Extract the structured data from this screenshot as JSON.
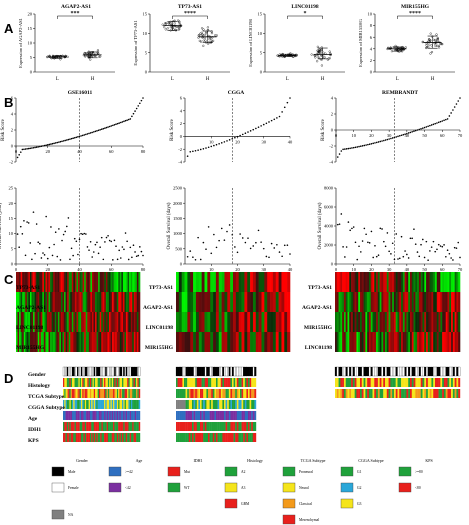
{
  "panel_letters": [
    "A",
    "B",
    "C",
    "D"
  ],
  "panelA": [
    {
      "title": "AGAP2-AS1",
      "ylabel": "Expression of AGAP2-AS1",
      "groups": [
        "L",
        "H"
      ],
      "sig": "***",
      "yticks": [
        "0",
        "5",
        "10",
        "15",
        "20"
      ],
      "ymin": 0,
      "ymax": 20,
      "L": {
        "mean": 5.2,
        "lo": 4.7,
        "hi": 5.6,
        "n": 40
      },
      "H": {
        "mean": 5.9,
        "lo": 4.9,
        "hi": 6.9,
        "n": 40
      }
    },
    {
      "title": "TP73-AS1",
      "ylabel": "Expression of TP73-AS1",
      "groups": [
        "L",
        "H"
      ],
      "sig": "****",
      "yticks": [
        "0",
        "5",
        "10",
        "15"
      ],
      "ymin": 0,
      "ymax": 15,
      "L": {
        "mean": 12,
        "lo": 10.7,
        "hi": 13.1,
        "n": 40
      },
      "H": {
        "mean": 9.1,
        "lo": 7.6,
        "hi": 10.6,
        "n": 40
      }
    },
    {
      "title": "LINC01198",
      "ylabel": "Expression of LINC01198",
      "groups": [
        "L",
        "H"
      ],
      "sig": "*",
      "yticks": [
        "0",
        "5",
        "10",
        "15"
      ],
      "ymin": 0,
      "ymax": 15,
      "L": {
        "mean": 4.3,
        "lo": 4.0,
        "hi": 4.6,
        "n": 40
      },
      "H": {
        "mean": 4.5,
        "lo": 3.4,
        "hi": 6.2,
        "n": 40
      }
    },
    {
      "title": "MIR155HG",
      "ylabel": "Expression of MIR155HG",
      "groups": [
        "L",
        "H"
      ],
      "sig": "****",
      "yticks": [
        "0",
        "2",
        "4",
        "6",
        "8",
        "10"
      ],
      "ymin": 0,
      "ymax": 10,
      "L": {
        "mean": 4.0,
        "lo": 3.6,
        "hi": 4.3,
        "n": 40
      },
      "H": {
        "mean": 5.1,
        "lo": 4.1,
        "hi": 6.2,
        "n": 40
      }
    }
  ],
  "panelB": [
    {
      "title": "GSE16011",
      "ylabel_top": "Risk Score",
      "ylabel_bottom": "Overall Survival (year)",
      "top_yticks": [
        "-2",
        "0",
        "2",
        "4",
        "6"
      ],
      "top_ymin": -2,
      "top_ymax": 6,
      "xticks": [
        "0",
        "20",
        "40",
        "60",
        "80"
      ],
      "xmax": 80,
      "cutoff": 40,
      "bottom_yticks": [
        "0",
        "5",
        "10",
        "15",
        "20",
        "25"
      ],
      "bottom_ymax": 25
    },
    {
      "title": "CGGA",
      "ylabel_top": "Risk Score",
      "ylabel_bottom": "Overall Survival (days)",
      "top_yticks": [
        "-4",
        "-2",
        "0",
        "2",
        "4",
        "6"
      ],
      "top_ymin": -4,
      "top_ymax": 6,
      "xticks": [
        "10",
        "20",
        "30",
        "40"
      ],
      "xmax": 40,
      "cutoff": 18,
      "bottom_yticks": [
        "0",
        "500",
        "1000",
        "1500",
        "2000",
        "2500"
      ],
      "bottom_ymax": 2500
    },
    {
      "title": "REMBRANDT",
      "ylabel_top": "Risk Score",
      "ylabel_bottom": "Overall Survival (days)",
      "top_yticks": [
        "-4",
        "-2",
        "0",
        "2",
        "4"
      ],
      "top_ymin": -4,
      "top_ymax": 4,
      "xticks": [
        "0",
        "10",
        "20",
        "30",
        "40",
        "50",
        "60",
        "70"
      ],
      "xmax": 70,
      "cutoff": 33,
      "bottom_yticks": [
        "0",
        "2000",
        "4000",
        "6000",
        "8000"
      ],
      "bottom_ymax": 8000
    }
  ],
  "panelC": {
    "rows_left": [
      "TP73-AS1",
      "AGAP2-AS1",
      "LINC01198",
      "MIR155HG"
    ],
    "rows_mid": [
      "TP73-AS1",
      "AGAP2-AS1",
      "LINC01198",
      "MIR155HG"
    ],
    "rows_right": [
      "TP73-AS1",
      "AGAP2-AS1",
      "MIR155HG",
      "LINC01198"
    ]
  },
  "panelD": {
    "rows": [
      "Gender",
      "Histology",
      "TCGA Subtype",
      "CGGA Subtype",
      "Age",
      "IDH1",
      "KPS"
    ]
  },
  "legend": {
    "headers": [
      "Gender",
      "Age",
      "IDH1",
      "Histology",
      "TCGA Subtype",
      "CGGA Subtype",
      "KPS"
    ],
    "items": [
      {
        "group": "Gender",
        "label": "Male",
        "color": "#000000"
      },
      {
        "group": "Gender",
        "label": "Female",
        "color": "#ffffff"
      },
      {
        "group": "Gender",
        "label": "NA",
        "color": "#808080"
      },
      {
        "group": "Age",
        "label": ">=42",
        "color": "#2f6fc0"
      },
      {
        "group": "Age",
        "label": "<42",
        "color": "#7b2fa0"
      },
      {
        "group": "IDH1",
        "label": "Mut",
        "color": "#e8201c"
      },
      {
        "group": "IDH1",
        "label": "WT",
        "color": "#1fa13b"
      },
      {
        "group": "Histology",
        "label": "A2",
        "color": "#1fa13b"
      },
      {
        "group": "Histology",
        "label": "A3",
        "color": "#f5e51b"
      },
      {
        "group": "Histology",
        "label": "GBM",
        "color": "#e8201c"
      },
      {
        "group": "TCGA Subtype",
        "label": "Proneural",
        "color": "#1fa13b"
      },
      {
        "group": "TCGA Subtype",
        "label": "Neural",
        "color": "#f5e51b"
      },
      {
        "group": "TCGA Subtype",
        "label": "Classical",
        "color": "#f39a1b"
      },
      {
        "group": "TCGA Subtype",
        "label": "Mesenchymal",
        "color": "#e8201c"
      },
      {
        "group": "CGGA Subtype",
        "label": "G1",
        "color": "#1fa13b"
      },
      {
        "group": "CGGA Subtype",
        "label": "G2",
        "color": "#2aa7d9"
      },
      {
        "group": "CGGA Subtype",
        "label": "G3",
        "color": "#f5e51b"
      },
      {
        "group": "KPS",
        "label": ">=80",
        "color": "#1fa13b"
      },
      {
        "group": "KPS",
        "label": "<80",
        "color": "#e8201c"
      }
    ]
  }
}
